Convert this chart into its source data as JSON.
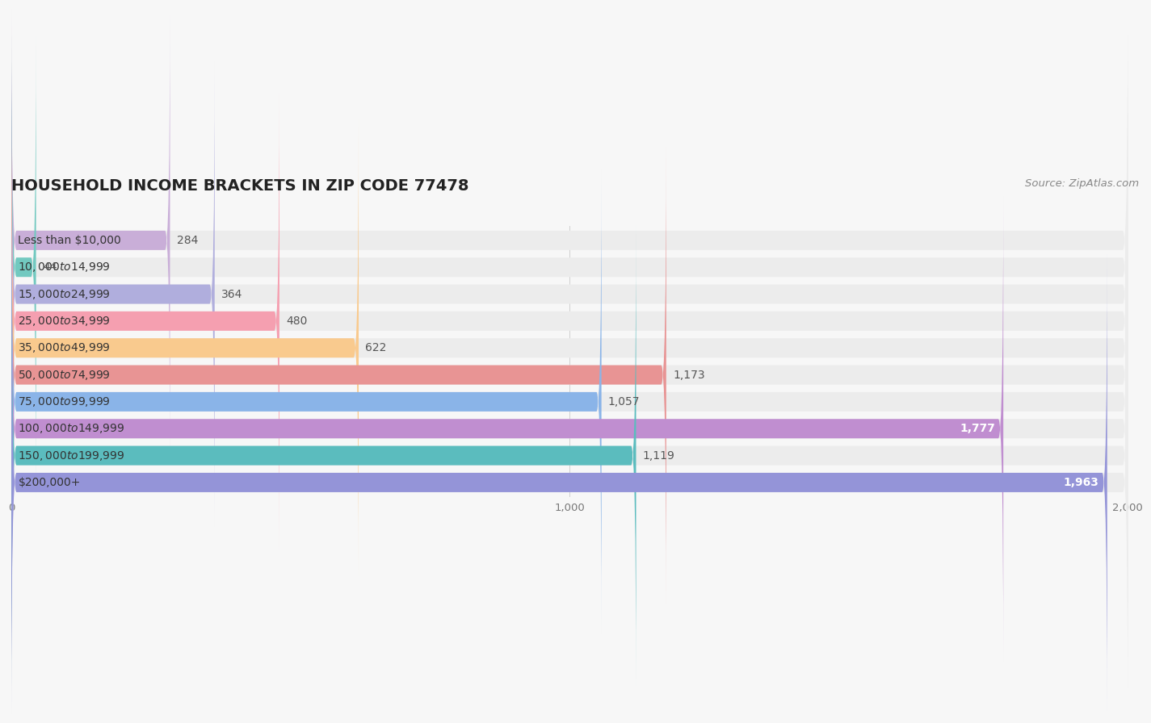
{
  "title": "HOUSEHOLD INCOME BRACKETS IN ZIP CODE 77478",
  "source": "Source: ZipAtlas.com",
  "categories": [
    "Less than $10,000",
    "$10,000 to $14,999",
    "$15,000 to $24,999",
    "$25,000 to $34,999",
    "$35,000 to $49,999",
    "$50,000 to $74,999",
    "$75,000 to $99,999",
    "$100,000 to $149,999",
    "$150,000 to $199,999",
    "$200,000+"
  ],
  "values": [
    284,
    44,
    364,
    480,
    622,
    1173,
    1057,
    1777,
    1119,
    1963
  ],
  "bar_colors": [
    "#c9aed8",
    "#72c9c0",
    "#b0aedd",
    "#f59fb0",
    "#f9ca8e",
    "#e89494",
    "#8ab4e8",
    "#c08ed0",
    "#5bbcbe",
    "#9494d8"
  ],
  "background_color": "#f7f7f7",
  "bar_bg_color": "#ececec",
  "text_color": "#555555",
  "xlim": [
    0,
    2000
  ],
  "xticks": [
    0,
    1000,
    2000
  ],
  "title_fontsize": 14,
  "label_fontsize": 10,
  "value_fontsize": 10,
  "source_fontsize": 9.5
}
